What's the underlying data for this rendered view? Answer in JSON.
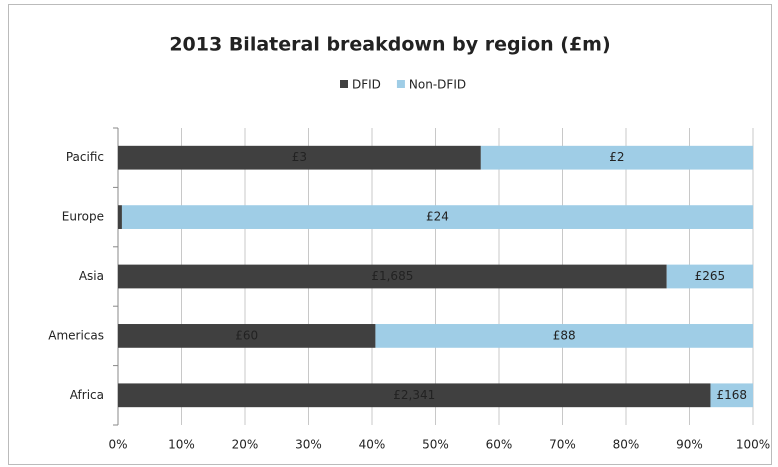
{
  "chart_data": {
    "type": "bar",
    "orientation": "horizontal",
    "percent_stacked": true,
    "title": "2013 Bilateral breakdown by region (£m)",
    "categories": [
      "Africa",
      "Americas",
      "Asia",
      "Europe",
      "Pacific"
    ],
    "series": [
      {
        "name": "DFID",
        "color": "#404040",
        "values": [
          2341,
          60,
          1685,
          0.15,
          2.8
        ],
        "value_labels": [
          "£2,341",
          "£60",
          "£1,685",
          null,
          "£3"
        ]
      },
      {
        "name": "Non-DFID",
        "color": "#9fcde6",
        "values": [
          168,
          88,
          265,
          24,
          2.1
        ],
        "value_labels": [
          "£168",
          "£88",
          "£265",
          "£24",
          "£2"
        ]
      }
    ],
    "xlim": [
      0,
      100
    ],
    "xticks": [
      {
        "value": 0,
        "label": "0%"
      },
      {
        "value": 10,
        "label": "10%"
      },
      {
        "value": 20,
        "label": "20%"
      },
      {
        "value": 30,
        "label": "30%"
      },
      {
        "value": 40,
        "label": "40%"
      },
      {
        "value": 50,
        "label": "50%"
      },
      {
        "value": 60,
        "label": "60%"
      },
      {
        "value": 70,
        "label": "70%"
      },
      {
        "value": 80,
        "label": "80%"
      },
      {
        "value": 90,
        "label": "90%"
      },
      {
        "value": 100,
        "label": "100%"
      }
    ],
    "grid": true,
    "legend": "top"
  }
}
